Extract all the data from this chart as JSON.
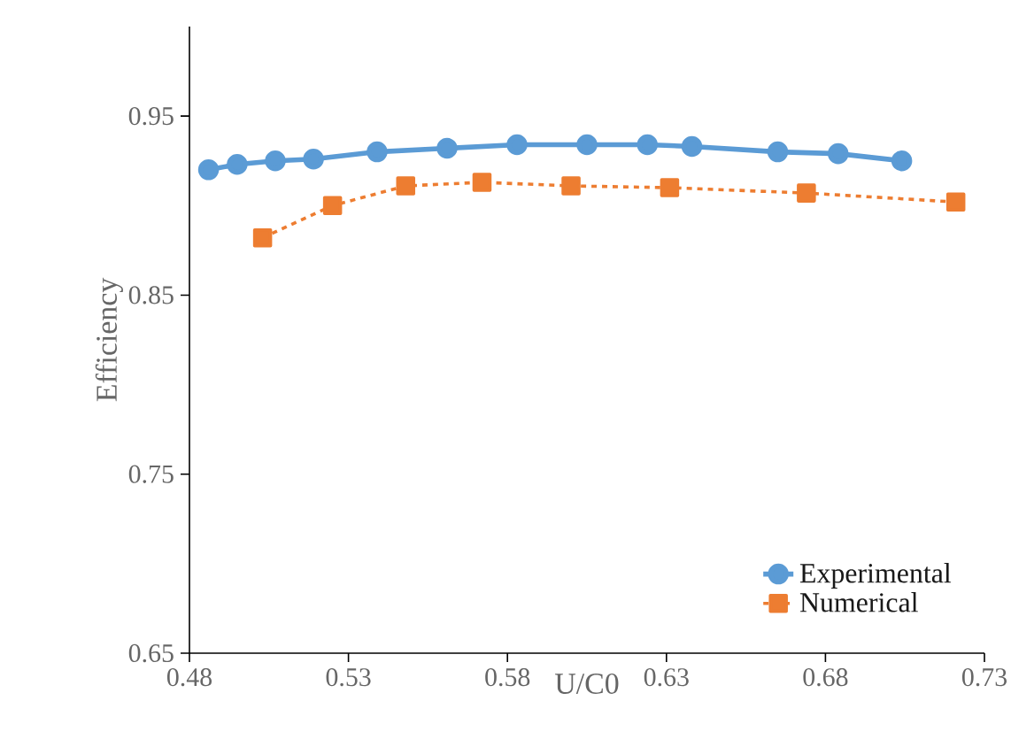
{
  "chart_data": {
    "type": "line",
    "xlabel": "U/C0",
    "ylabel": "Efficiency",
    "xlim": [
      0.48,
      0.73
    ],
    "ylim": [
      0.65,
      1.0
    ],
    "xticks": [
      0.48,
      0.53,
      0.58,
      0.63,
      0.68,
      0.73
    ],
    "yticks": [
      0.65,
      0.75,
      0.85,
      0.95
    ],
    "grid": false,
    "legend": "bottom right",
    "series": [
      {
        "name": "Experimental",
        "color": "#5b9bd5",
        "marker": "circle",
        "line_style": "solid",
        "x": [
          0.486,
          0.495,
          0.507,
          0.519,
          0.539,
          0.561,
          0.583,
          0.605,
          0.624,
          0.638,
          0.665,
          0.684,
          0.704
        ],
        "values": [
          0.92,
          0.923,
          0.925,
          0.926,
          0.93,
          0.932,
          0.934,
          0.934,
          0.934,
          0.933,
          0.93,
          0.929,
          0.925
        ]
      },
      {
        "name": "Numerical",
        "color": "#ed7d31",
        "marker": "square",
        "line_style": "dashed",
        "x": [
          0.503,
          0.525,
          0.548,
          0.572,
          0.6,
          0.631,
          0.674,
          0.721
        ],
        "values": [
          0.882,
          0.9,
          0.911,
          0.913,
          0.911,
          0.91,
          0.907,
          0.902
        ]
      }
    ]
  }
}
